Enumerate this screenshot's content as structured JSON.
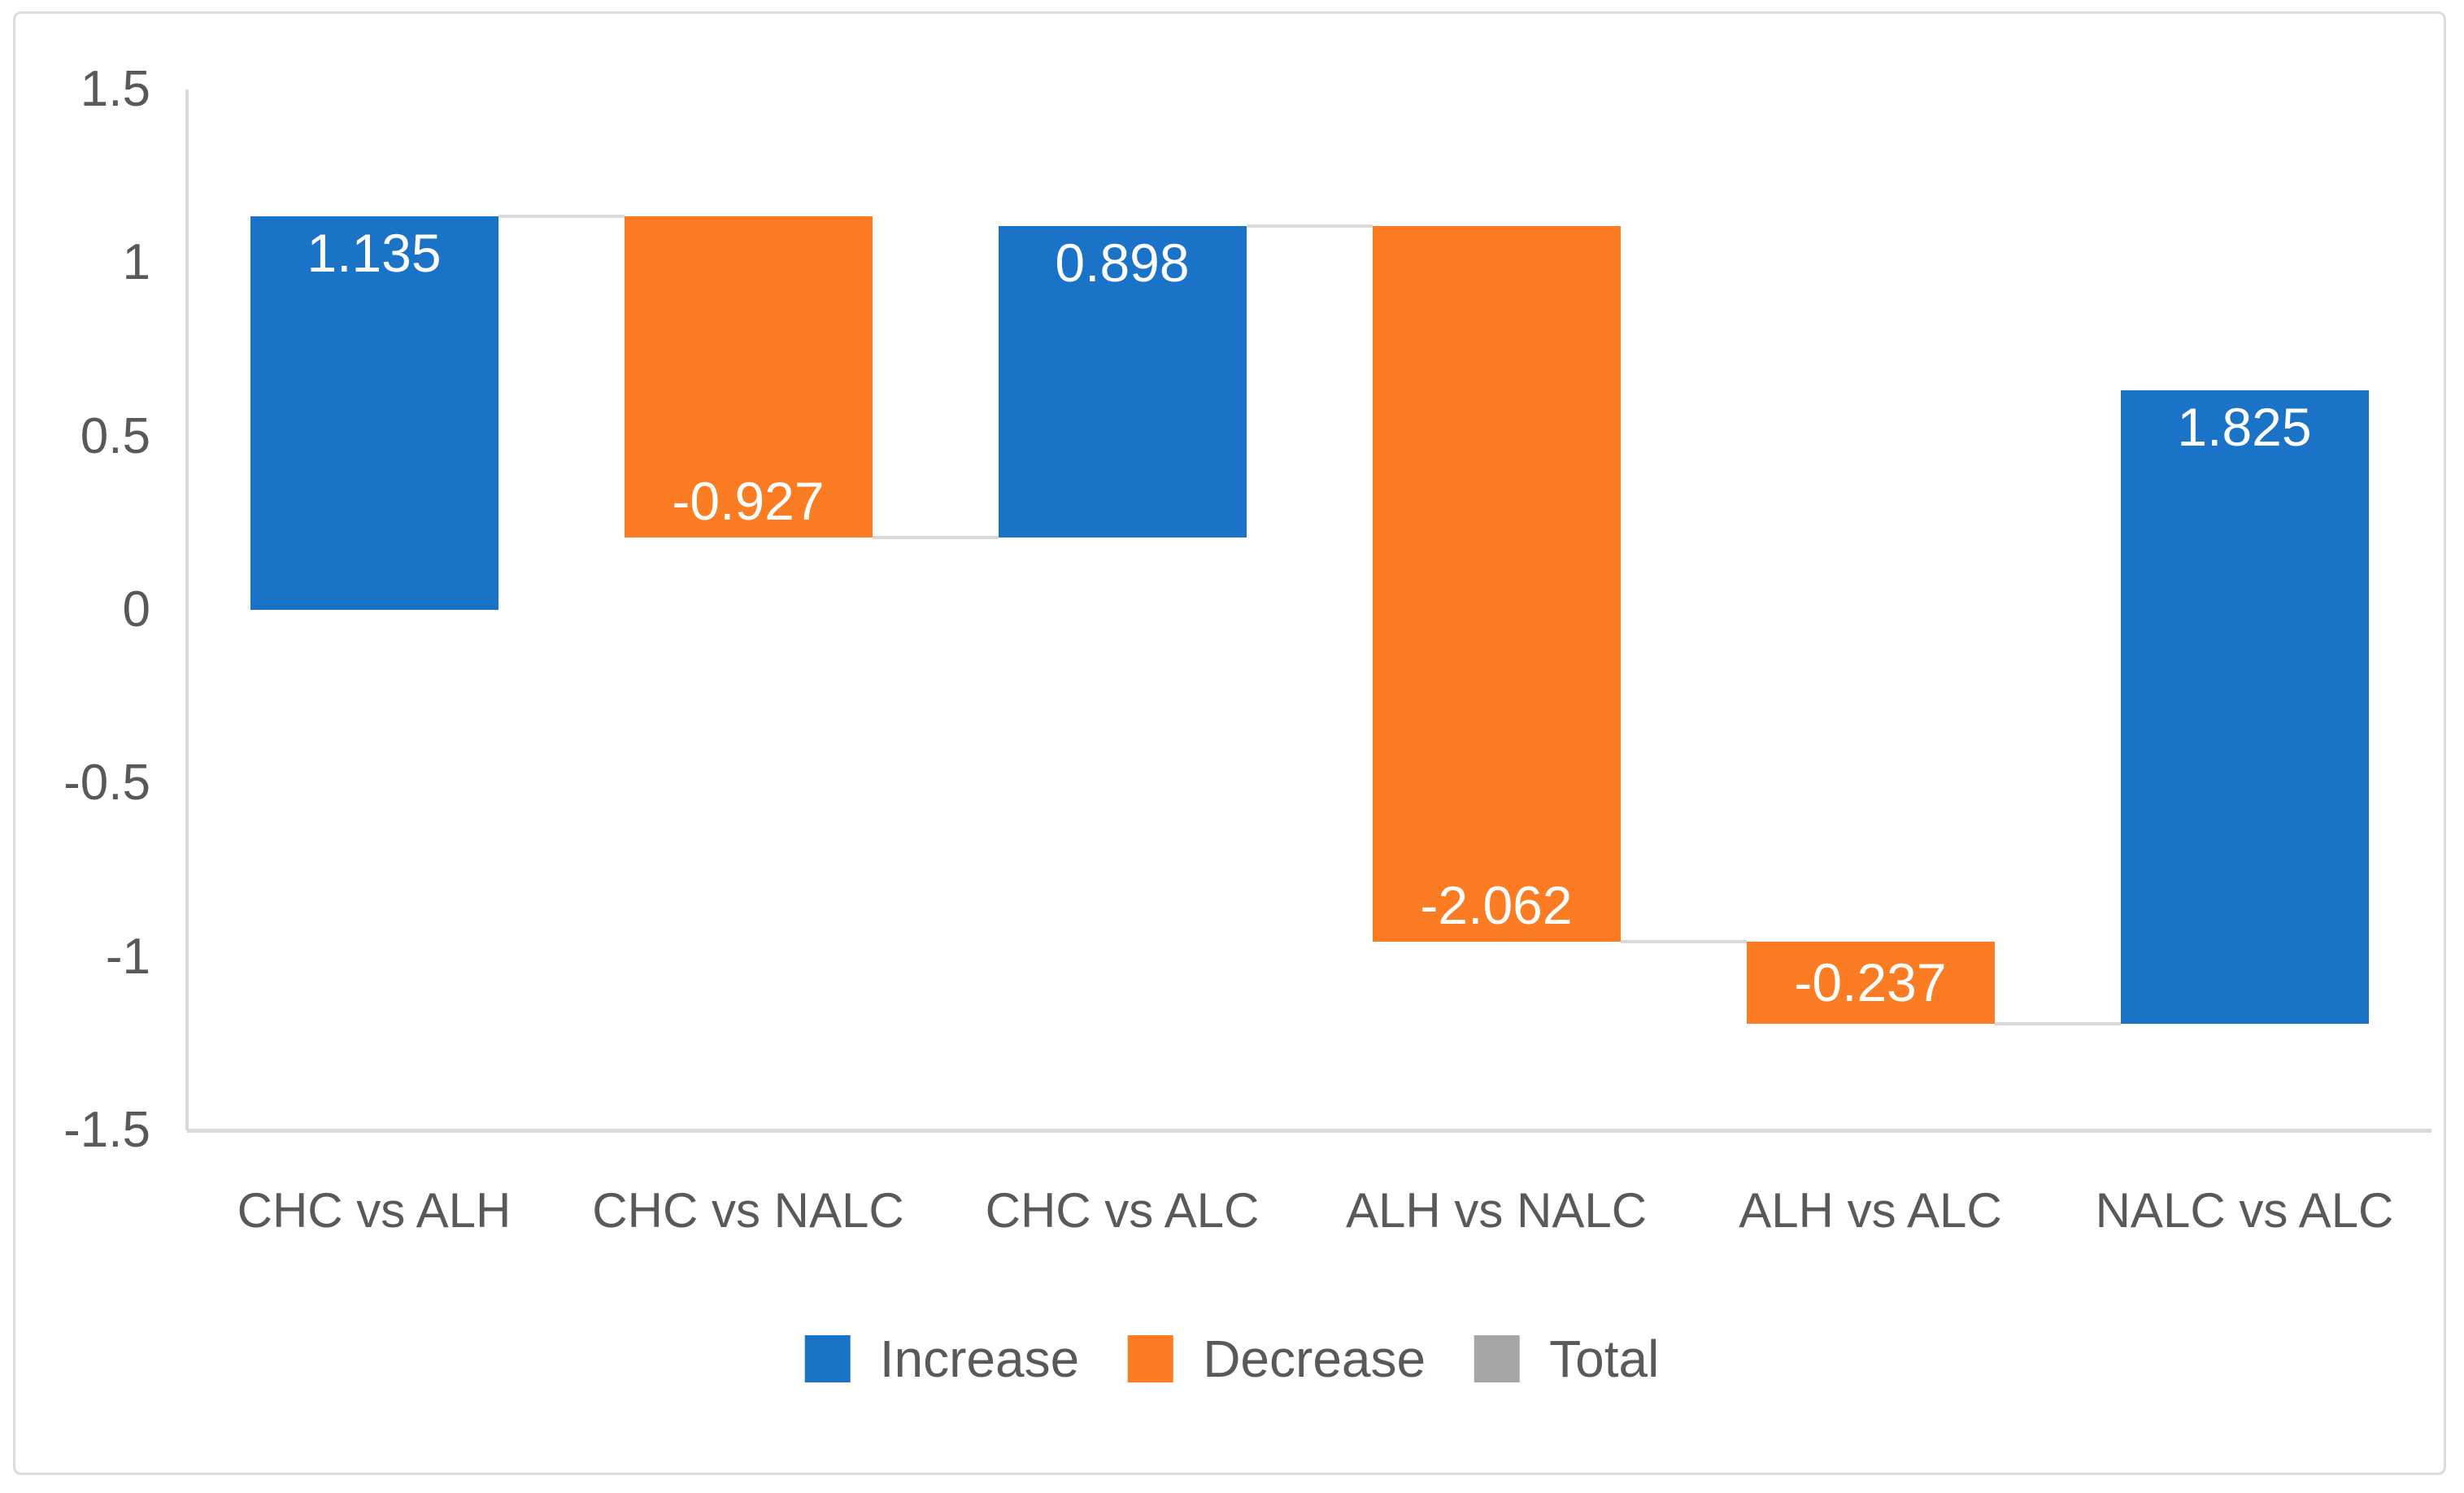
{
  "chart_data": {
    "type": "bar",
    "subtype": "waterfall",
    "title": "",
    "xlabel": "",
    "ylabel": "",
    "categories": [
      "CHC vs ALH",
      "CHC vs NALC",
      "CHC vs ALC",
      "ALH vs NALC",
      "ALH vs ALC",
      "NALC vs ALC"
    ],
    "values": [
      1.135,
      -0.927,
      0.898,
      -2.062,
      -0.237,
      1.825
    ],
    "value_labels": [
      "1.135",
      "-0.927",
      "0.898",
      "-2.062",
      "-0.237",
      "1.825"
    ],
    "bar_types": [
      "increase",
      "decrease",
      "increase",
      "decrease",
      "decrease",
      "increase"
    ],
    "label_placement": [
      "top",
      "bottom",
      "top",
      "bottom",
      "center",
      "top"
    ],
    "cumulative_start": [
      0,
      1.135,
      0.208,
      1.106,
      -0.956,
      -1.193
    ],
    "cumulative_end": [
      1.135,
      0.208,
      1.106,
      -0.956,
      -1.193,
      0.632
    ],
    "ylim": [
      -1.5,
      1.5
    ],
    "yticks": [
      1.5,
      1,
      0.5,
      0,
      -0.5,
      -1,
      -1.5
    ],
    "ytick_labels": [
      "1.5",
      "1",
      "0.5",
      "0",
      "-0.5",
      "-1",
      "-1.5"
    ],
    "grid": false,
    "connector_lines": true,
    "legend": {
      "position": "bottom-center",
      "entries": [
        {
          "label": "Increase",
          "color": "#1b73c8"
        },
        {
          "label": "Decrease",
          "color": "#fb7c23"
        },
        {
          "label": "Total",
          "color": "#a6a6a6"
        }
      ]
    },
    "colors": {
      "increase": "#1b73c8",
      "decrease": "#fb7c23",
      "total": "#a6a6a6",
      "axis_text": "#595959",
      "bar_label_text": "#ffffff",
      "axis_line": "#d9d9d9",
      "connector": "#d9d9d9",
      "frame_border": "#dcdcdc",
      "background": "#ffffff"
    }
  }
}
